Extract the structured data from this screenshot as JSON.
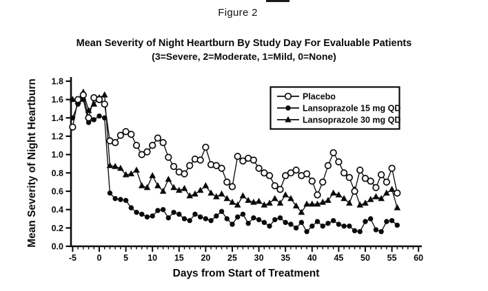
{
  "figure_label": "Figure 2",
  "title": "Mean Severity of Night Heartburn By Study Day For Evaluable Patients",
  "subtitle": "(3=Severe, 2=Moderate, 1=Mild, 0=None)",
  "ink_color": "#0a0a0a",
  "background_color": "#ffffff",
  "chart_data": {
    "type": "line",
    "xlabel": "Days from Start of Treatment",
    "ylabel": "Mean Severity of Night Heartburn",
    "xlim": [
      -7,
      62
    ],
    "ylim": [
      0,
      1.8
    ],
    "grid": false,
    "legend_position": "upper-right-inside-box",
    "xticks": {
      "values": [
        -5,
        0,
        5,
        10,
        15,
        20,
        25,
        30,
        35,
        40,
        45,
        50,
        55,
        60
      ],
      "labels": [
        "-5",
        "0",
        "5",
        "10",
        "15",
        "20",
        "25",
        "30",
        "35",
        "40",
        "45",
        "50",
        "55",
        "60"
      ],
      "minor_step_days": 1
    },
    "yticks": {
      "values": [
        0,
        0.2,
        0.4,
        0.6,
        0.8,
        1.0,
        1.2,
        1.4,
        1.6,
        1.8
      ],
      "labels": [
        "0.0",
        "0.2",
        "0.4",
        "0.6",
        "0.8",
        "1.0",
        "1.2",
        "1.4",
        "1.6",
        "1.8"
      ]
    },
    "x": [
      -5,
      -4,
      -3,
      -2,
      -1,
      0,
      1,
      2,
      3,
      4,
      5,
      6,
      7,
      8,
      9,
      10,
      11,
      12,
      13,
      14,
      15,
      16,
      17,
      18,
      19,
      20,
      21,
      22,
      23,
      24,
      25,
      26,
      27,
      28,
      29,
      30,
      31,
      32,
      33,
      34,
      35,
      36,
      37,
      38,
      39,
      40,
      41,
      42,
      43,
      44,
      45,
      46,
      47,
      48,
      49,
      50,
      51,
      52,
      53,
      54,
      55,
      56
    ],
    "series": [
      {
        "name": "Placebo",
        "marker": "open-circle",
        "values": [
          1.3,
          1.6,
          1.65,
          1.4,
          1.62,
          1.6,
          1.55,
          1.15,
          1.13,
          1.21,
          1.25,
          1.22,
          1.1,
          1.0,
          1.03,
          1.1,
          1.18,
          1.13,
          0.97,
          0.87,
          0.81,
          0.79,
          0.88,
          0.95,
          0.94,
          1.08,
          0.89,
          0.88,
          0.85,
          0.7,
          0.65,
          0.98,
          0.93,
          0.96,
          0.94,
          0.85,
          0.8,
          0.77,
          0.66,
          0.62,
          0.77,
          0.8,
          0.83,
          0.77,
          0.79,
          0.71,
          0.56,
          0.7,
          0.88,
          1.02,
          0.92,
          0.8,
          0.75,
          0.6,
          0.83,
          0.74,
          0.71,
          0.64,
          0.78,
          0.7,
          0.85,
          0.58
        ]
      },
      {
        "name": "Lansoprazole 15 mg QD",
        "marker": "filled-circle",
        "values": [
          1.4,
          1.55,
          1.6,
          1.35,
          1.38,
          1.42,
          1.4,
          0.58,
          0.52,
          0.51,
          0.5,
          0.42,
          0.37,
          0.35,
          0.32,
          0.33,
          0.39,
          0.4,
          0.31,
          0.37,
          0.35,
          0.3,
          0.28,
          0.35,
          0.32,
          0.3,
          0.28,
          0.33,
          0.38,
          0.3,
          0.24,
          0.32,
          0.35,
          0.25,
          0.31,
          0.29,
          0.26,
          0.22,
          0.29,
          0.31,
          0.26,
          0.24,
          0.2,
          0.26,
          0.16,
          0.22,
          0.27,
          0.22,
          0.25,
          0.28,
          0.24,
          0.22,
          0.22,
          0.17,
          0.16,
          0.27,
          0.3,
          0.18,
          0.16,
          0.27,
          0.28,
          0.23
        ]
      },
      {
        "name": "Lansoprazole 30 mg QD",
        "marker": "filled-triangle",
        "values": [
          1.6,
          1.58,
          1.68,
          1.48,
          1.55,
          1.62,
          1.65,
          0.88,
          0.87,
          0.85,
          0.78,
          0.79,
          0.83,
          0.66,
          0.64,
          0.77,
          0.66,
          0.6,
          0.73,
          0.64,
          0.61,
          0.63,
          0.55,
          0.57,
          0.61,
          0.66,
          0.58,
          0.54,
          0.57,
          0.52,
          0.48,
          0.45,
          0.55,
          0.5,
          0.48,
          0.49,
          0.45,
          0.47,
          0.52,
          0.47,
          0.56,
          0.52,
          0.44,
          0.37,
          0.46,
          0.46,
          0.46,
          0.48,
          0.5,
          0.58,
          0.56,
          0.52,
          0.47,
          0.62,
          0.45,
          0.47,
          0.51,
          0.54,
          0.52,
          0.58,
          0.62,
          0.42
        ]
      }
    ]
  }
}
